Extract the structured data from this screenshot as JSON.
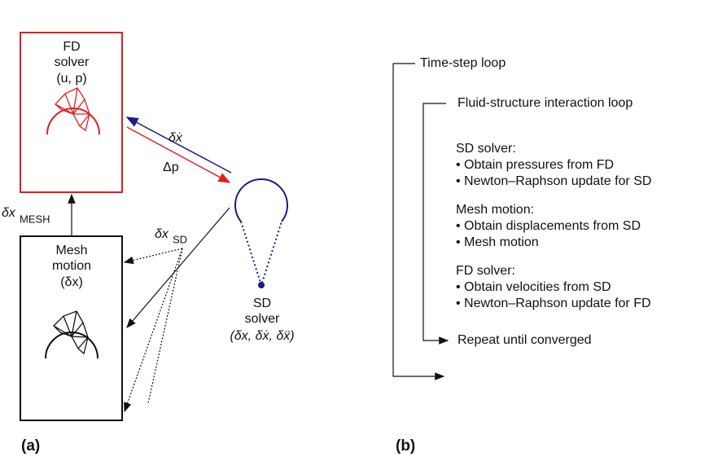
{
  "panel_a": {
    "label": "(a)",
    "fd_solver": [
      "FD",
      "solver",
      "(u, p)"
    ],
    "mesh_motion": [
      "Mesh",
      "motion",
      "(δx)"
    ],
    "sd_solver": [
      "SD",
      "solver",
      "(δx, δẋ, δẍ)"
    ],
    "arrow_velocity": "δẋ",
    "arrow_pressure": "Δp",
    "arrow_mesh": {
      "base": "δx",
      "sub": "MESH"
    },
    "arrow_sd": {
      "base": "δx",
      "sub": "SD"
    }
  },
  "panel_b": {
    "label": "(b)",
    "outer_loop": "Time-step loop",
    "inner_loop": "Fluid-structure interaction loop",
    "sections": [
      {
        "title": "SD solver:",
        "items": [
          "• Obtain pressures from FD",
          "• Newton–Raphson update for SD"
        ]
      },
      {
        "title": "Mesh motion:",
        "items": [
          "• Obtain displacements from SD",
          "• Mesh motion"
        ]
      },
      {
        "title": "FD solver:",
        "items": [
          "• Obtain velocities from SD",
          "• Newton–Raphson update for FD"
        ]
      }
    ],
    "repeat": "Repeat until converged"
  }
}
